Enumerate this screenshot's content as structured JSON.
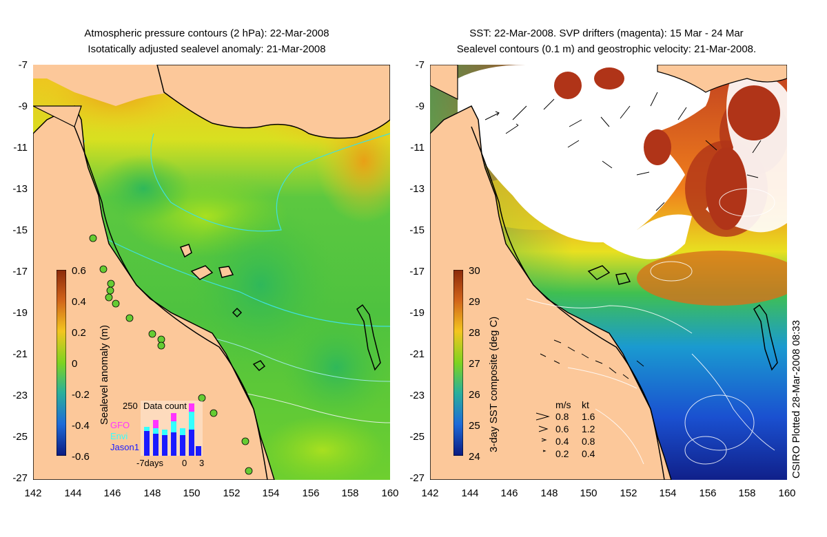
{
  "left_panel": {
    "title_line1": "Atmospheric pressure contours (2 hPa): 22-Mar-2008",
    "title_line2": "Isotatically adjusted sealevel anomaly: 21-Mar-2008",
    "colorbar": {
      "label": "Sealevel anomaly (m)",
      "ticks": [
        "0.6",
        "0.4",
        "0.2",
        "0",
        "-0.2",
        "-0.4",
        "-0.6"
      ]
    },
    "inset": {
      "title": "Data count",
      "max_label": "250",
      "series": [
        "GFO",
        "Envi",
        "Jason1"
      ],
      "series_colors": [
        "#ff33ff",
        "#33ffff",
        "#1a1aff"
      ],
      "xticks": [
        "-7days",
        "0",
        "3"
      ]
    }
  },
  "right_panel": {
    "title_line1": "SST: 22-Mar-2008. SVP drifters (magenta): 15 Mar - 24 Mar",
    "title_line2": "Sealevel contours (0.1 m) and geostrophic velocity: 21-Mar-2008.",
    "colorbar": {
      "label": "3-day SST composite (deg C)",
      "ticks": [
        "30",
        "29",
        "28",
        "27",
        "26",
        "25",
        "24"
      ]
    },
    "legend": {
      "headers": [
        "m/s",
        "kt"
      ],
      "rows": [
        [
          "0.8",
          "1.6"
        ],
        [
          "0.6",
          "1.2"
        ],
        [
          "0.4",
          "0.8"
        ],
        [
          "0.2",
          "0.4"
        ]
      ]
    },
    "side_note": "CSIRO Plotted 28-Mar-2008 08:33"
  },
  "axes": {
    "y_ticks": [
      "-7",
      "-9",
      "-11",
      "-13",
      "-15",
      "-17",
      "-19",
      "-21",
      "-23",
      "-25",
      "-27"
    ],
    "x_ticks": [
      "142",
      "144",
      "146",
      "148",
      "150",
      "152",
      "154",
      "156",
      "158",
      "160"
    ]
  },
  "colors": {
    "land": "#fcc89a",
    "coast": "#000000",
    "cloud": "#ffffff"
  }
}
